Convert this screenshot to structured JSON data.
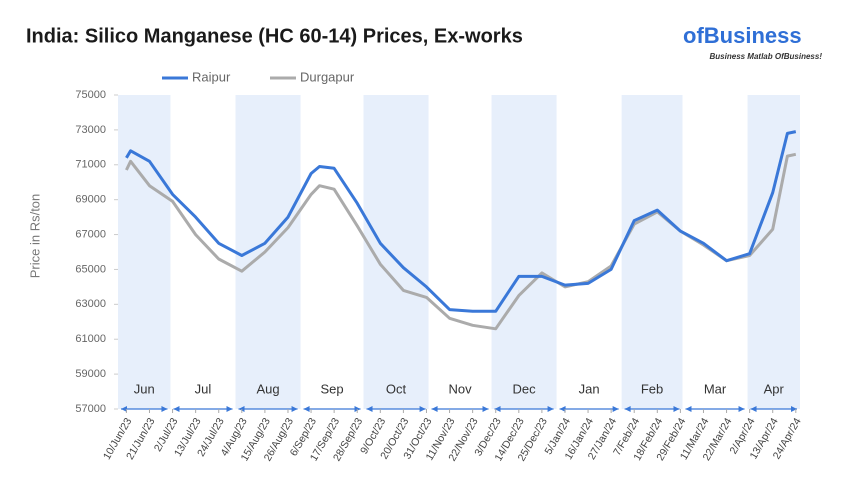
{
  "chart_data": {
    "type": "line",
    "title": "India: Silico Manganese (HC 60-14) Prices, Ex-works",
    "logo": {
      "name": "ofBusiness",
      "tagline": "Business Matlab OfBusiness!"
    },
    "y_label": "Price in Rs/ton",
    "x": [
      "2023-06-10",
      "2023-06-12",
      "2023-06-21",
      "2023-07-02",
      "2023-07-13",
      "2023-07-24",
      "2023-08-04",
      "2023-08-15",
      "2023-08-26",
      "2023-09-06",
      "2023-09-10",
      "2023-09-17",
      "2023-09-28",
      "2023-10-09",
      "2023-10-20",
      "2023-10-31",
      "2023-11-11",
      "2023-11-22",
      "2023-12-03",
      "2023-12-14",
      "2023-12-25",
      "2024-01-05",
      "2024-01-16",
      "2024-01-27",
      "2024-02-07",
      "2024-02-18",
      "2024-02-29",
      "2024-03-11",
      "2024-03-22",
      "2024-04-02",
      "2024-04-13",
      "2024-04-20",
      "2024-04-24"
    ],
    "series": [
      {
        "name": "Raipur",
        "color": "#3a78d8",
        "values": [
          71400,
          71800,
          71200,
          69300,
          68000,
          66500,
          65800,
          66500,
          68000,
          70500,
          70900,
          70800,
          68800,
          66500,
          65100,
          64000,
          62700,
          62600,
          62600,
          64600,
          64600,
          64100,
          64200,
          65000,
          67800,
          68400,
          67200,
          66500,
          65500,
          65900,
          69400,
          72800,
          72900
        ]
      },
      {
        "name": "Durgapur",
        "color": "#ababab",
        "values": [
          70700,
          71200,
          69800,
          68900,
          67000,
          65600,
          64900,
          66000,
          67400,
          69300,
          69800,
          69600,
          67500,
          65300,
          63800,
          63400,
          62200,
          61800,
          61600,
          63500,
          64800,
          64000,
          64300,
          65200,
          67600,
          68300,
          67200,
          66400,
          65500,
          65800,
          67300,
          71500,
          71600
        ]
      }
    ],
    "xlim": [
      "2023-06-06",
      "2024-04-26"
    ],
    "xticks": [
      {
        "value": "2023-06-10",
        "label": "10/Jun/23"
      },
      {
        "value": "2023-06-21",
        "label": "21/Jun/23"
      },
      {
        "value": "2023-07-02",
        "label": "2/Jul/23"
      },
      {
        "value": "2023-07-13",
        "label": "13/Jul/23"
      },
      {
        "value": "2023-07-24",
        "label": "24/Jul/23"
      },
      {
        "value": "2023-08-04",
        "label": "4/Aug/23"
      },
      {
        "value": "2023-08-15",
        "label": "15/Aug/23"
      },
      {
        "value": "2023-08-26",
        "label": "26/Aug/23"
      },
      {
        "value": "2023-09-06",
        "label": "6/Sep/23"
      },
      {
        "value": "2023-09-17",
        "label": "17/Sep/23"
      },
      {
        "value": "2023-09-28",
        "label": "28/Sep/23"
      },
      {
        "value": "2023-10-09",
        "label": "9/Oct/23"
      },
      {
        "value": "2023-10-20",
        "label": "20/Oct/23"
      },
      {
        "value": "2023-10-31",
        "label": "31/Oct/23"
      },
      {
        "value": "2023-11-11",
        "label": "11/Nov/23"
      },
      {
        "value": "2023-11-22",
        "label": "22/Nov/23"
      },
      {
        "value": "2023-12-03",
        "label": "3/Dec/23"
      },
      {
        "value": "2023-12-14",
        "label": "14/Dec/23"
      },
      {
        "value": "2023-12-25",
        "label": "25/Dec/23"
      },
      {
        "value": "2024-01-05",
        "label": "5/Jan/24"
      },
      {
        "value": "2024-01-16",
        "label": "16/Jan/24"
      },
      {
        "value": "2024-01-27",
        "label": "27/Jan/24"
      },
      {
        "value": "2024-02-07",
        "label": "7/Feb/24"
      },
      {
        "value": "2024-02-18",
        "label": "18/Feb/24"
      },
      {
        "value": "2024-02-29",
        "label": "29/Feb/24"
      },
      {
        "value": "2024-03-11",
        "label": "11/Mar/24"
      },
      {
        "value": "2024-03-22",
        "label": "22/Mar/24"
      },
      {
        "value": "2024-04-02",
        "label": "2/Apr/24"
      },
      {
        "value": "2024-04-13",
        "label": "13/Apr/24"
      },
      {
        "value": "2024-04-24",
        "label": "24/Apr/24"
      }
    ],
    "month_labels": [
      "Jun",
      "Jul",
      "Aug",
      "Sep",
      "Oct",
      "Nov",
      "Dec",
      "Jan",
      "Feb",
      "Mar",
      "Apr"
    ],
    "ylim": [
      57000,
      75000
    ],
    "yticks": [
      57000,
      59000,
      61000,
      63000,
      65000,
      67000,
      69000,
      71000,
      73000,
      75000
    ],
    "legend": "top-left"
  }
}
